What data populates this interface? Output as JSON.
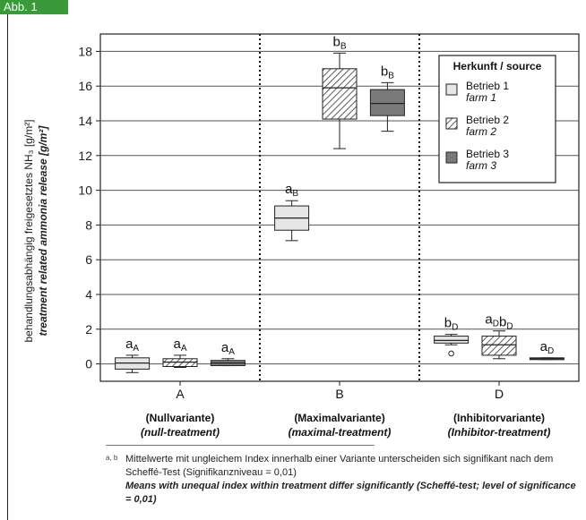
{
  "figure_tag": "Abb. 1",
  "chart_data": {
    "type": "boxplot",
    "ylabel_de": "behandlungsabhängig freigesetztes NH₃ [g/m²]",
    "ylabel_en": "treatment related ammonia release [g/m²]",
    "ylim": [
      -1,
      19
    ],
    "yticks": [
      0,
      2,
      4,
      6,
      8,
      10,
      12,
      14,
      16,
      18
    ],
    "grid": "horizontal",
    "legend_placement": "top-right",
    "legend_title": "Herkunft / source",
    "series": [
      {
        "name_de": "Betrieb 1",
        "name_en": "farm 1",
        "fill": "#e6e6e6",
        "pattern": "none"
      },
      {
        "name_de": "Betrieb 2",
        "name_en": "farm 2",
        "fill": "#ffffff",
        "pattern": "hatch"
      },
      {
        "name_de": "Betrieb 3",
        "name_en": "farm 3",
        "fill": "#7a7a7a",
        "pattern": "none"
      }
    ],
    "groups": [
      {
        "label": "A",
        "desc_de": "(Nullvariante)",
        "desc_en": "(null-treatment)",
        "boxes": [
          {
            "whisker_low": -0.5,
            "q1": -0.3,
            "median": 0.05,
            "q3": 0.35,
            "whisker_high": 0.5,
            "outliers": [],
            "letter": "a",
            "index": "A"
          },
          {
            "whisker_low": -0.2,
            "q1": -0.15,
            "median": 0.1,
            "q3": 0.3,
            "whisker_high": 0.5,
            "outliers": [],
            "letter": "a",
            "index": "A"
          },
          {
            "whisker_low": -0.1,
            "q1": -0.1,
            "median": 0.05,
            "q3": 0.2,
            "whisker_high": 0.3,
            "outliers": [],
            "letter": "a",
            "index": "A"
          }
        ]
      },
      {
        "label": "B",
        "desc_de": "(Maximalvariante)",
        "desc_en": "(maximal-treatment)",
        "boxes": [
          {
            "whisker_low": 7.1,
            "q1": 7.7,
            "median": 8.4,
            "q3": 9.1,
            "whisker_high": 9.4,
            "outliers": [],
            "letter": "a",
            "index": "B"
          },
          {
            "whisker_low": 12.4,
            "q1": 14.1,
            "median": 15.9,
            "q3": 17.0,
            "whisker_high": 17.9,
            "outliers": [],
            "letter": "b",
            "index": "B"
          },
          {
            "whisker_low": 13.4,
            "q1": 14.3,
            "median": 15.0,
            "q3": 15.8,
            "whisker_high": 16.2,
            "outliers": [],
            "letter": "b",
            "index": "B"
          }
        ]
      },
      {
        "label": "D",
        "desc_de": "(Inhibitorvariante)",
        "desc_en": "(Inhibitor-treatment)",
        "boxes": [
          {
            "whisker_low": 1.1,
            "q1": 1.2,
            "median": 1.35,
            "q3": 1.6,
            "whisker_high": 1.7,
            "outliers": [
              0.6
            ],
            "letter": "b",
            "index": "D"
          },
          {
            "whisker_low": 0.3,
            "q1": 0.5,
            "median": 1.1,
            "q3": 1.6,
            "whisker_high": 1.9,
            "outliers": [],
            "letter": "a",
            "index": "D",
            "letter2": "b",
            "index2": "D"
          },
          {
            "whisker_low": 0.25,
            "q1": 0.25,
            "median": 0.3,
            "q3": 0.35,
            "whisker_high": 0.35,
            "outliers": [],
            "letter": "a",
            "index": "D"
          }
        ]
      }
    ]
  },
  "footnote": {
    "marker": "a, b",
    "de": "Mittelwerte mit ungleichem Index innerhalb einer Variante unterscheiden sich signifikant nach dem Scheffé-Test (Signifikanzniveau = 0,01)",
    "en": "Means with unequal index within treatment differ significantly (Scheffé-test; level of significance = 0,01)"
  }
}
